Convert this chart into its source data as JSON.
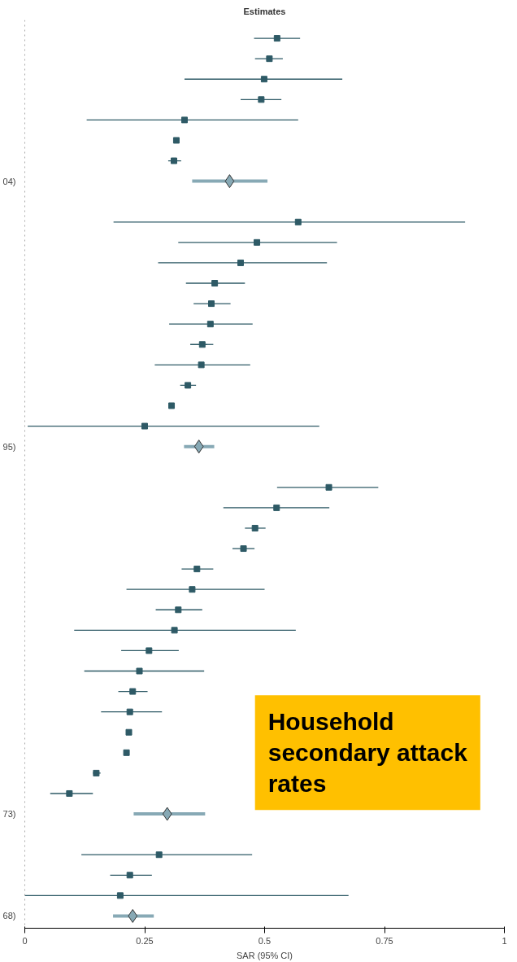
{
  "chart_data": {
    "type": "scatter",
    "orientation": "horizontal",
    "title": "Estimates",
    "xlabel": "SAR (95% CI)",
    "categories": [
      null,
      null,
      null,
      null,
      null,
      null,
      null,
      "04)",
      null,
      null,
      null,
      null,
      null,
      null,
      null,
      null,
      null,
      null,
      null,
      null,
      "95)",
      null,
      null,
      null,
      null,
      null,
      null,
      null,
      null,
      null,
      null,
      null,
      null,
      null,
      null,
      null,
      null,
      null,
      "73)",
      null,
      null,
      null,
      null,
      "68)"
    ],
    "xlim": [
      0,
      1
    ],
    "xticks": [
      0,
      0.25,
      0.5,
      0.75,
      1
    ],
    "series": [
      {
        "color": "#2e5a66",
        "marker": "square",
        "values": [
          0.526,
          0.51,
          0.499,
          0.493,
          0.333,
          0.316,
          0.311,
          null,
          null,
          0.57,
          0.484,
          0.45,
          0.396,
          0.389,
          0.387,
          0.37,
          0.368,
          0.34,
          0.306,
          0.25,
          null,
          null,
          0.634,
          0.525,
          0.48,
          0.456,
          0.359,
          0.349,
          0.32,
          0.312,
          0.259,
          0.239,
          0.225,
          0.219,
          0.217,
          0.212,
          0.149,
          0.093,
          null,
          null,
          0.28,
          0.219,
          0.199,
          null
        ],
        "errors": [
          [
            0.478,
            0.574
          ],
          [
            0.48,
            0.538
          ],
          [
            0.333,
            0.662
          ],
          [
            0.45,
            0.535
          ],
          [
            0.129,
            0.57
          ],
          null,
          [
            0.299,
            0.326
          ],
          null,
          null,
          [
            0.185,
            0.918
          ],
          [
            0.32,
            0.651
          ],
          [
            0.278,
            0.63
          ],
          [
            0.336,
            0.459
          ],
          [
            0.352,
            0.429
          ],
          [
            0.301,
            0.475
          ],
          [
            0.345,
            0.393
          ],
          [
            0.271,
            0.47
          ],
          [
            0.324,
            0.357
          ],
          null,
          [
            0.006,
            0.614
          ],
          null,
          null,
          [
            0.526,
            0.737
          ],
          [
            0.414,
            0.635
          ],
          [
            0.459,
            0.502
          ],
          [
            0.433,
            0.479
          ],
          [
            0.327,
            0.393
          ],
          [
            0.212,
            0.5
          ],
          [
            0.273,
            0.37
          ],
          [
            0.103,
            0.565
          ],
          [
            0.201,
            0.321
          ],
          [
            0.124,
            0.374
          ],
          [
            0.195,
            0.256
          ],
          [
            0.159,
            0.286
          ],
          null,
          null,
          [
            0.142,
            0.158
          ],
          [
            0.053,
            0.142
          ],
          null,
          null,
          [
            0.118,
            0.474
          ],
          [
            0.178,
            0.265
          ],
          [
            0.0,
            0.675
          ],
          null
        ]
      },
      {
        "color": "#87a9b5",
        "marker": "diamond",
        "values": [
          null,
          null,
          null,
          null,
          null,
          null,
          null,
          0.427,
          null,
          null,
          null,
          null,
          null,
          null,
          null,
          null,
          null,
          null,
          null,
          null,
          0.363,
          null,
          null,
          null,
          null,
          null,
          null,
          null,
          null,
          null,
          null,
          null,
          null,
          null,
          null,
          null,
          null,
          null,
          0.297,
          null,
          null,
          null,
          null,
          0.225
        ],
        "errors": [
          null,
          null,
          null,
          null,
          null,
          null,
          null,
          [
            0.349,
            0.506
          ],
          null,
          null,
          null,
          null,
          null,
          null,
          null,
          null,
          null,
          null,
          null,
          null,
          [
            0.332,
            0.395
          ],
          null,
          null,
          null,
          null,
          null,
          null,
          null,
          null,
          null,
          null,
          null,
          null,
          null,
          null,
          null,
          null,
          null,
          [
            0.227,
            0.376
          ],
          null,
          null,
          null,
          null,
          [
            0.184,
            0.269
          ]
        ]
      }
    ],
    "ref_lines": [
      {
        "axis": "x",
        "value": 0,
        "line_style": "dotted",
        "color": "#555555"
      }
    ],
    "annotations": [
      "Household secondary attack rates"
    ]
  }
}
